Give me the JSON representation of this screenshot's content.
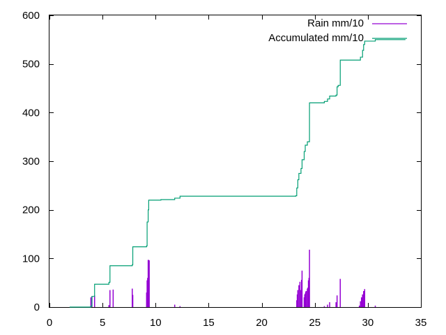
{
  "chart_data": {
    "type": "line",
    "title": "",
    "xlabel": "",
    "ylabel": "",
    "xlim": [
      0,
      35
    ],
    "ylim": [
      0,
      600
    ],
    "xticks": [
      0,
      5,
      10,
      15,
      20,
      25,
      30,
      35
    ],
    "yticks": [
      0,
      100,
      200,
      300,
      400,
      500,
      600
    ],
    "grid": false,
    "legend_position": "top-right",
    "series": [
      {
        "name": "Rain mm/10",
        "style": "impulses",
        "color": "#9400d3",
        "points": [
          [
            3.9,
            20
          ],
          [
            4.0,
            22
          ],
          [
            4.25,
            24
          ],
          [
            5.6,
            4
          ],
          [
            5.7,
            35
          ],
          [
            6.0,
            36
          ],
          [
            7.8,
            38
          ],
          [
            7.85,
            25
          ],
          [
            9.15,
            30
          ],
          [
            9.2,
            55
          ],
          [
            9.25,
            60
          ],
          [
            9.3,
            97
          ],
          [
            9.35,
            97
          ],
          [
            9.4,
            96
          ],
          [
            11.8,
            5
          ],
          [
            12.3,
            2
          ],
          [
            23.3,
            14
          ],
          [
            23.35,
            26
          ],
          [
            23.4,
            35
          ],
          [
            23.5,
            45
          ],
          [
            23.6,
            52
          ],
          [
            23.65,
            35
          ],
          [
            23.75,
            56
          ],
          [
            23.8,
            75
          ],
          [
            24.0,
            20
          ],
          [
            24.05,
            26
          ],
          [
            24.1,
            28
          ],
          [
            24.15,
            32
          ],
          [
            24.2,
            33
          ],
          [
            24.3,
            38
          ],
          [
            24.35,
            40
          ],
          [
            24.4,
            55
          ],
          [
            24.45,
            60
          ],
          [
            24.5,
            118
          ],
          [
            25.9,
            2
          ],
          [
            26.2,
            5
          ],
          [
            26.4,
            10
          ],
          [
            27.0,
            10
          ],
          [
            27.1,
            24
          ],
          [
            27.4,
            58
          ],
          [
            29.2,
            3
          ],
          [
            29.3,
            12
          ],
          [
            29.4,
            20
          ],
          [
            29.5,
            26
          ],
          [
            29.6,
            33
          ],
          [
            29.7,
            37
          ],
          [
            30.7,
            3
          ]
        ]
      },
      {
        "name": "Accumulated mm/10",
        "style": "steps",
        "color": "#009e73",
        "points": [
          [
            1.9,
            0
          ],
          [
            3.9,
            2
          ],
          [
            4.0,
            22
          ],
          [
            4.25,
            47
          ],
          [
            5.6,
            51
          ],
          [
            5.7,
            85
          ],
          [
            7.8,
            87
          ],
          [
            7.85,
            124
          ],
          [
            9.15,
            126
          ],
          [
            9.2,
            175
          ],
          [
            9.3,
            200
          ],
          [
            9.35,
            220
          ],
          [
            10.5,
            221
          ],
          [
            11.8,
            224
          ],
          [
            12.3,
            228
          ],
          [
            23.2,
            229
          ],
          [
            23.3,
            245
          ],
          [
            23.4,
            262
          ],
          [
            23.5,
            275
          ],
          [
            23.7,
            285
          ],
          [
            23.8,
            303
          ],
          [
            24.0,
            320
          ],
          [
            24.1,
            333
          ],
          [
            24.3,
            340
          ],
          [
            24.5,
            420
          ],
          [
            25.9,
            423
          ],
          [
            26.2,
            428
          ],
          [
            26.4,
            434
          ],
          [
            27.0,
            436
          ],
          [
            27.1,
            453
          ],
          [
            27.2,
            456
          ],
          [
            27.4,
            508
          ],
          [
            29.3,
            514
          ],
          [
            29.5,
            528
          ],
          [
            29.6,
            540
          ],
          [
            29.7,
            547
          ],
          [
            30.7,
            550
          ],
          [
            33.5,
            551
          ]
        ]
      }
    ]
  }
}
